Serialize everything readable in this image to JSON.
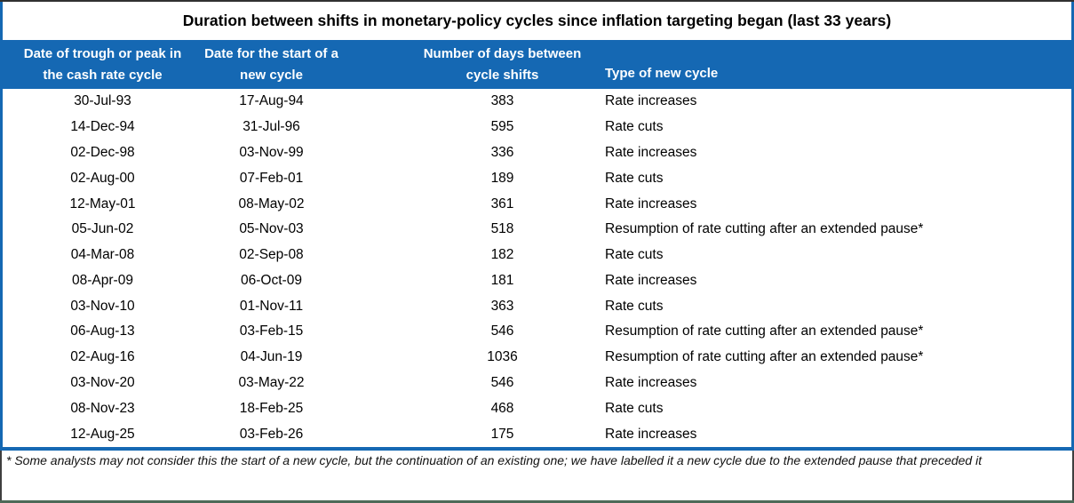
{
  "title": "Duration between shifts in monetary-policy cycles since inflation targeting began (last 33 years)",
  "chart_data": {
    "type": "table",
    "columns": [
      {
        "line1": "Date of trough or peak in",
        "line2": "the cash rate cycle"
      },
      {
        "line1": "Date for the start of a",
        "line2": "new cycle"
      },
      {
        "line1": "Number of days between",
        "line2": "cycle shifts"
      },
      {
        "line1": "Type of new cycle",
        "line2": ""
      }
    ],
    "rows": [
      {
        "trough_or_peak_date": "30-Jul-93",
        "new_cycle_start_date": "17-Aug-94",
        "days_between_shifts": "383",
        "new_cycle_type": "Rate increases"
      },
      {
        "trough_or_peak_date": "14-Dec-94",
        "new_cycle_start_date": "31-Jul-96",
        "days_between_shifts": "595",
        "new_cycle_type": "Rate cuts"
      },
      {
        "trough_or_peak_date": "02-Dec-98",
        "new_cycle_start_date": "03-Nov-99",
        "days_between_shifts": "336",
        "new_cycle_type": "Rate increases"
      },
      {
        "trough_or_peak_date": "02-Aug-00",
        "new_cycle_start_date": "07-Feb-01",
        "days_between_shifts": "189",
        "new_cycle_type": "Rate cuts"
      },
      {
        "trough_or_peak_date": "12-May-01",
        "new_cycle_start_date": "08-May-02",
        "days_between_shifts": "361",
        "new_cycle_type": "Rate increases"
      },
      {
        "trough_or_peak_date": "05-Jun-02",
        "new_cycle_start_date": "05-Nov-03",
        "days_between_shifts": "518",
        "new_cycle_type": "Resumption of rate cutting after an extended pause*"
      },
      {
        "trough_or_peak_date": "04-Mar-08",
        "new_cycle_start_date": "02-Sep-08",
        "days_between_shifts": "182",
        "new_cycle_type": "Rate cuts"
      },
      {
        "trough_or_peak_date": "08-Apr-09",
        "new_cycle_start_date": "06-Oct-09",
        "days_between_shifts": "181",
        "new_cycle_type": "Rate increases"
      },
      {
        "trough_or_peak_date": "03-Nov-10",
        "new_cycle_start_date": "01-Nov-11",
        "days_between_shifts": "363",
        "new_cycle_type": "Rate cuts"
      },
      {
        "trough_or_peak_date": "06-Aug-13",
        "new_cycle_start_date": "03-Feb-15",
        "days_between_shifts": "546",
        "new_cycle_type": "Resumption of rate cutting after an extended pause*"
      },
      {
        "trough_or_peak_date": "02-Aug-16",
        "new_cycle_start_date": "04-Jun-19",
        "days_between_shifts": "1036",
        "new_cycle_type": "Resumption of rate cutting after an extended pause*"
      },
      {
        "trough_or_peak_date": "03-Nov-20",
        "new_cycle_start_date": "03-May-22",
        "days_between_shifts": "546",
        "new_cycle_type": "Rate increases"
      },
      {
        "trough_or_peak_date": "08-Nov-23",
        "new_cycle_start_date": "18-Feb-25",
        "days_between_shifts": "468",
        "new_cycle_type": "Rate cuts"
      },
      {
        "trough_or_peak_date": "12-Aug-25",
        "new_cycle_start_date": "03-Feb-26",
        "days_between_shifts": "175",
        "new_cycle_type": "Rate increases"
      }
    ]
  },
  "footnote": "* Some analysts may not consider this the start of a new cycle, but the continuation of an existing one; we have labelled it a new cycle due to the extended pause that preceded it",
  "colors": {
    "header_bg": "#1568B3",
    "header_text": "#FFFFFF",
    "side_border_blue": "#1568B3",
    "separator_blue": "#1568B3",
    "dark_border": "#3F3F3F",
    "bottom_border": "#4D6A58",
    "body_text": "#000000"
  }
}
